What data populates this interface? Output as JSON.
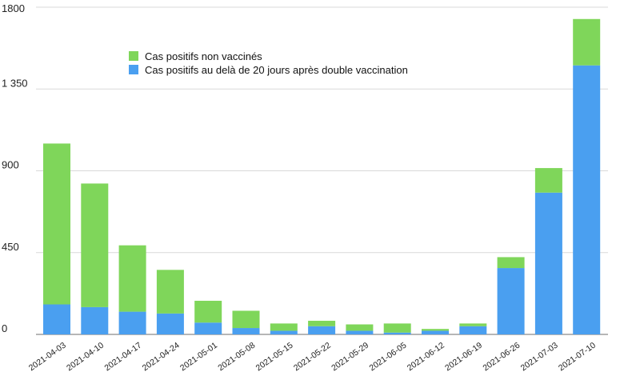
{
  "chart_data": {
    "type": "bar",
    "stacked": true,
    "categories": [
      "2021-04-03",
      "2021-04-10",
      "2021-04-17",
      "2021-04-24",
      "2021-05-01",
      "2021-05-08",
      "2021-05-15",
      "2021-05-22",
      "2021-05-29",
      "2021-06-05",
      "2021-06-12",
      "2021-06-19",
      "2021-06-26",
      "2021-07-03",
      "2021-07-10"
    ],
    "series": [
      {
        "name": "Cas positifs au delà de 20 jours après double vaccination",
        "color": "#4a9ff0",
        "values": [
          165,
          150,
          125,
          115,
          65,
          35,
          20,
          45,
          20,
          10,
          20,
          45,
          365,
          780,
          1480
        ]
      },
      {
        "name": "Cas positifs non vaccinés",
        "color": "#7fd65a",
        "values": [
          885,
          680,
          365,
          240,
          120,
          95,
          40,
          30,
          35,
          50,
          10,
          15,
          60,
          135,
          255
        ]
      }
    ],
    "ylim": [
      0,
      1800
    ],
    "yticks": [
      0,
      450,
      900,
      1350,
      1800
    ],
    "ytick_labels": [
      "0",
      "450",
      "900",
      "1 350",
      "1800"
    ],
    "grid": true,
    "legend_position": "top-left"
  }
}
